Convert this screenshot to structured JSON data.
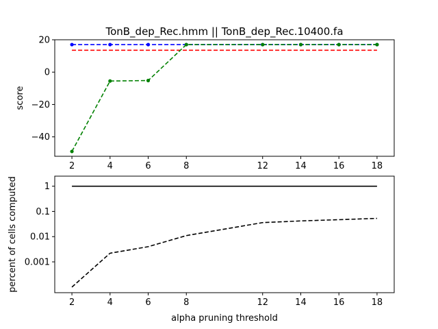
{
  "title": "TonB_dep_Rec.hmm || TonB_dep_Rec.10400.fa",
  "chart_data": [
    {
      "type": "line",
      "title": "TonB_dep_Rec.hmm || TonB_dep_Rec.10400.fa",
      "xlabel": "",
      "ylabel": "score",
      "x": [
        2,
        4,
        6,
        8,
        12,
        14,
        16,
        18
      ],
      "xticks": [
        2,
        4,
        6,
        8,
        12,
        14,
        16,
        18
      ],
      "xlim": [
        1.1,
        18.9
      ],
      "ylim": [
        -52,
        20
      ],
      "yticks": [
        20,
        0,
        -20,
        -40
      ],
      "ytick_labels": [
        "20",
        "0",
        "−20",
        "−40"
      ],
      "grid": false,
      "series": [
        {
          "style": "dashed",
          "color": "#0000ff",
          "marker": "dot",
          "points": [
            [
              2,
              17
            ],
            [
              4,
              17
            ],
            [
              6,
              17
            ],
            [
              8,
              17
            ],
            [
              12,
              17
            ],
            [
              14,
              17
            ],
            [
              16,
              17
            ],
            [
              18,
              17
            ]
          ]
        },
        {
          "style": "dashed",
          "color": "#ff0000",
          "marker": "none",
          "points": [
            [
              2,
              13.5
            ],
            [
              18,
              13.5
            ]
          ]
        },
        {
          "style": "dashed",
          "color": "#008000",
          "marker": "dot",
          "points": [
            [
              2,
              -49
            ],
            [
              4,
              -5.5
            ],
            [
              6,
              -5.2
            ],
            [
              8,
              17
            ],
            [
              12,
              17
            ],
            [
              14,
              17
            ],
            [
              16,
              17
            ],
            [
              18,
              17
            ]
          ]
        }
      ]
    },
    {
      "type": "line",
      "title": "",
      "xlabel": "alpha pruning threshold",
      "ylabel": "percent of cells computed",
      "yscale": "log",
      "x": [
        2,
        4,
        6,
        8,
        12,
        14,
        16,
        18
      ],
      "xticks": [
        2,
        4,
        6,
        8,
        12,
        14,
        16,
        18
      ],
      "xlim": [
        1.1,
        18.9
      ],
      "ylim": [
        6e-05,
        2.5
      ],
      "yticks": [
        1,
        0.1,
        0.01,
        0.001
      ],
      "ytick_labels": [
        "1",
        "0.1",
        "0.01",
        "0.001"
      ],
      "grid": false,
      "series": [
        {
          "style": "solid",
          "color": "#000000",
          "marker": "none",
          "points": [
            [
              2,
              1
            ],
            [
              18,
              1
            ]
          ]
        },
        {
          "style": "dashed",
          "color": "#000000",
          "marker": "none",
          "points": [
            [
              2,
              0.0001
            ],
            [
              4,
              0.0022
            ],
            [
              6,
              0.004
            ],
            [
              8,
              0.011
            ],
            [
              12,
              0.036
            ],
            [
              14,
              0.042
            ],
            [
              16,
              0.047
            ],
            [
              18,
              0.053
            ]
          ]
        }
      ]
    }
  ]
}
